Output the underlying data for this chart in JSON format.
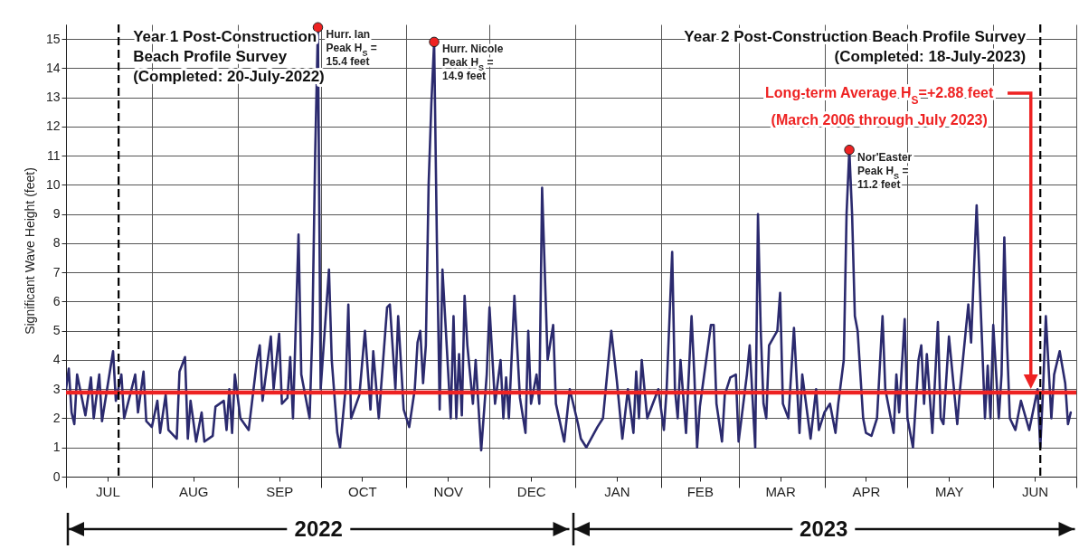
{
  "chart_data": {
    "type": "line",
    "ylabel": "Significant Wave Height (feet)",
    "xlim": [
      "2022-07-01",
      "2023-07-01"
    ],
    "ylim": [
      0,
      15.5
    ],
    "yticks": [
      0,
      1,
      2,
      3,
      4,
      5,
      6,
      7,
      8,
      9,
      10,
      11,
      12,
      13,
      14,
      15
    ],
    "xticks": [
      {
        "value": "2022-07-01",
        "label": null
      },
      {
        "value": "2022-07-16",
        "label": "JUL"
      },
      {
        "value": "2022-08-01",
        "label": null
      },
      {
        "value": "2022-08-16",
        "label": "AUG"
      },
      {
        "value": "2022-09-01",
        "label": null
      },
      {
        "value": "2022-09-16",
        "label": "SEP"
      },
      {
        "value": "2022-10-01",
        "label": null
      },
      {
        "value": "2022-10-16",
        "label": "OCT"
      },
      {
        "value": "2022-11-01",
        "label": null
      },
      {
        "value": "2022-11-16",
        "label": "NOV"
      },
      {
        "value": "2022-12-01",
        "label": null
      },
      {
        "value": "2022-12-16",
        "label": "DEC"
      },
      {
        "value": "2023-01-01",
        "label": null
      },
      {
        "value": "2023-01-16",
        "label": "JAN"
      },
      {
        "value": "2023-02-01",
        "label": null
      },
      {
        "value": "2023-02-15",
        "label": "FEB"
      },
      {
        "value": "2023-03-01",
        "label": null
      },
      {
        "value": "2023-03-16",
        "label": "MAR"
      },
      {
        "value": "2023-04-01",
        "label": null
      },
      {
        "value": "2023-04-16",
        "label": "APR"
      },
      {
        "value": "2023-05-01",
        "label": null
      },
      {
        "value": "2023-05-16",
        "label": "MAY"
      },
      {
        "value": "2023-06-01",
        "label": null
      },
      {
        "value": "2023-06-16",
        "label": "JUN"
      },
      {
        "value": "2023-07-01",
        "label": null
      }
    ],
    "grid": true,
    "series": [
      {
        "color": "#2b2a6e",
        "x": [
          "2022-07-01",
          "2022-07-02",
          "2022-07-03",
          "2022-07-04",
          "2022-07-05",
          "2022-07-08",
          "2022-07-10",
          "2022-07-11",
          "2022-07-13",
          "2022-07-14",
          "2022-07-18",
          "2022-07-19",
          "2022-07-21",
          "2022-07-22",
          "2022-07-26",
          "2022-07-27",
          "2022-07-29",
          "2022-07-30",
          "2022-08-01",
          "2022-08-03",
          "2022-08-04",
          "2022-08-06",
          "2022-08-07",
          "2022-08-10",
          "2022-08-11",
          "2022-08-13",
          "2022-08-14",
          "2022-08-15",
          "2022-08-17",
          "2022-08-19",
          "2022-08-20",
          "2022-08-23",
          "2022-08-24",
          "2022-08-27",
          "2022-08-28",
          "2022-08-29",
          "2022-08-30",
          "2022-08-31",
          "2022-09-02",
          "2022-09-05",
          "2022-09-08",
          "2022-09-09",
          "2022-09-10",
          "2022-09-13",
          "2022-09-14",
          "2022-09-16",
          "2022-09-17",
          "2022-09-19",
          "2022-09-20",
          "2022-09-21",
          "2022-09-23",
          "2022-09-24",
          "2022-09-27",
          "2022-09-28",
          "2022-09-29",
          "2022-09-30",
          "2022-10-01",
          "2022-10-04",
          "2022-10-05",
          "2022-10-07",
          "2022-10-08",
          "2022-10-10",
          "2022-10-11",
          "2022-10-12",
          "2022-10-15",
          "2022-10-17",
          "2022-10-19",
          "2022-10-20",
          "2022-10-22",
          "2022-10-25",
          "2022-10-26",
          "2022-10-28",
          "2022-10-29",
          "2022-10-31",
          "2022-11-02",
          "2022-11-04",
          "2022-11-05",
          "2022-11-06",
          "2022-11-07",
          "2022-11-08",
          "2022-11-09",
          "2022-11-10",
          "2022-11-11",
          "2022-11-12",
          "2022-11-13",
          "2022-11-14",
          "2022-11-17",
          "2022-11-18",
          "2022-11-19",
          "2022-11-20",
          "2022-11-21",
          "2022-11-22",
          "2022-11-23",
          "2022-11-25",
          "2022-11-26",
          "2022-11-28",
          "2022-11-30",
          "2022-12-01",
          "2022-12-03",
          "2022-12-05",
          "2022-12-06",
          "2022-12-07",
          "2022-12-08",
          "2022-12-10",
          "2022-12-12",
          "2022-12-14",
          "2022-12-15",
          "2022-12-16",
          "2022-12-18",
          "2022-12-19",
          "2022-12-20",
          "2022-12-22",
          "2022-12-24",
          "2022-12-25",
          "2022-12-28",
          "2022-12-30",
          "2023-01-02",
          "2023-01-03",
          "2023-01-05",
          "2023-01-09",
          "2023-01-11",
          "2023-01-14",
          "2023-01-16",
          "2023-01-18",
          "2023-01-20",
          "2023-01-22",
          "2023-01-23",
          "2023-01-24",
          "2023-01-25",
          "2023-01-27",
          "2023-01-31",
          "2023-02-02",
          "2023-02-03",
          "2023-02-05",
          "2023-02-06",
          "2023-02-07",
          "2023-02-08",
          "2023-02-10",
          "2023-02-12",
          "2023-02-13",
          "2023-02-14",
          "2023-02-15",
          "2023-02-19",
          "2023-02-20",
          "2023-02-21",
          "2023-02-23",
          "2023-02-24",
          "2023-02-26",
          "2023-02-28",
          "2023-03-01",
          "2023-03-04",
          "2023-03-05",
          "2023-03-07",
          "2023-03-08",
          "2023-03-09",
          "2023-03-10",
          "2023-03-11",
          "2023-03-12",
          "2023-03-15",
          "2023-03-16",
          "2023-03-17",
          "2023-03-19",
          "2023-03-21",
          "2023-03-23",
          "2023-03-24",
          "2023-03-27",
          "2023-03-29",
          "2023-03-30",
          "2023-04-01",
          "2023-04-03",
          "2023-04-05",
          "2023-04-06",
          "2023-04-08",
          "2023-04-09",
          "2023-04-10",
          "2023-04-11",
          "2023-04-12",
          "2023-04-13",
          "2023-04-15",
          "2023-04-16",
          "2023-04-18",
          "2023-04-20",
          "2023-04-22",
          "2023-04-23",
          "2023-04-26",
          "2023-04-27",
          "2023-04-28",
          "2023-04-30",
          "2023-05-01",
          "2023-05-03",
          "2023-05-05",
          "2023-05-06",
          "2023-05-07",
          "2023-05-08",
          "2023-05-10",
          "2023-05-12",
          "2023-05-13",
          "2023-05-14",
          "2023-05-16",
          "2023-05-19",
          "2023-05-20",
          "2023-05-23",
          "2023-05-24",
          "2023-05-25",
          "2023-05-26",
          "2023-05-28",
          "2023-05-29",
          "2023-05-30",
          "2023-05-31",
          "2023-06-01",
          "2023-06-03",
          "2023-06-04",
          "2023-06-05",
          "2023-06-06",
          "2023-06-07",
          "2023-06-09",
          "2023-06-11",
          "2023-06-14",
          "2023-06-17",
          "2023-06-18",
          "2023-06-19",
          "2023-06-20",
          "2023-06-22",
          "2023-06-23",
          "2023-06-25",
          "2023-06-27",
          "2023-06-28",
          "2023-06-29"
        ],
        "values": [
          3.0,
          3.7,
          2.2,
          1.8,
          3.5,
          2.1,
          3.4,
          2.0,
          3.5,
          1.9,
          4.3,
          2.6,
          3.5,
          2.0,
          3.5,
          2.2,
          3.6,
          1.9,
          1.7,
          2.6,
          1.5,
          2.8,
          1.6,
          1.3,
          3.6,
          4.1,
          1.3,
          2.6,
          1.2,
          2.2,
          1.2,
          1.4,
          2.4,
          2.6,
          1.6,
          3.0,
          1.5,
          3.5,
          2.0,
          1.6,
          4.0,
          4.5,
          2.6,
          4.8,
          3.0,
          4.9,
          2.5,
          2.7,
          4.1,
          2.0,
          8.3,
          3.5,
          2.0,
          5.0,
          11.0,
          15.4,
          3.0,
          7.1,
          4.0,
          1.5,
          1.0,
          3.0,
          5.9,
          2.0,
          2.8,
          5.0,
          2.3,
          4.3,
          2.0,
          5.8,
          5.9,
          3.0,
          5.5,
          2.3,
          1.7,
          3.0,
          4.6,
          5.0,
          3.2,
          4.5,
          10.0,
          12.8,
          14.9,
          8.0,
          2.3,
          7.1,
          2.0,
          5.5,
          2.0,
          4.2,
          2.1,
          6.2,
          4.5,
          2.5,
          4.0,
          0.9,
          3.5,
          5.8,
          2.5,
          4.0,
          2.0,
          3.4,
          2.0,
          6.2,
          2.7,
          1.5,
          5.0,
          2.5,
          3.5,
          2.5,
          9.9,
          4.0,
          5.2,
          2.5,
          1.2,
          3.0,
          1.8,
          1.3,
          1.0,
          1.7,
          2.0,
          5.0,
          3.3,
          1.3,
          3.0,
          1.5,
          3.6,
          2.0,
          4.0,
          2.0,
          3.0,
          1.6,
          3.0,
          7.7,
          3.0,
          2.0,
          4.0,
          1.5,
          5.5,
          3.5,
          1.0,
          2.4,
          5.2,
          5.2,
          2.5,
          1.2,
          2.8,
          3.4,
          3.5,
          1.2,
          3.5,
          4.5,
          1.0,
          9.0,
          5.0,
          2.5,
          2.0,
          4.5,
          5.0,
          6.3,
          2.5,
          2.0,
          5.1,
          1.5,
          3.5,
          1.3,
          3.0,
          1.6,
          2.2,
          2.5,
          1.5,
          2.5,
          4.0,
          9.0,
          11.2,
          9.0,
          5.5,
          5.0,
          2.0,
          1.5,
          1.4,
          2.0,
          5.5,
          3.0,
          1.5,
          3.5,
          2.2,
          5.4,
          2.0,
          1.0,
          4.0,
          4.5,
          2.5,
          4.2,
          1.5,
          5.3,
          2.0,
          1.8,
          4.8,
          1.8,
          3.0,
          5.9,
          4.6,
          7.0,
          9.3,
          4.5,
          2.0,
          3.8,
          2.0,
          5.2,
          2.0,
          3.5,
          8.2,
          4.5,
          2.0,
          1.6,
          2.6,
          1.6,
          3.0,
          1.0,
          3.0,
          5.5,
          2.0,
          3.5,
          4.3,
          3.2,
          1.8,
          2.2
        ]
      },
      {
        "type": "scatter",
        "marker": "circle",
        "color": "#ee2222",
        "x": [
          "2022-09-30",
          "2022-11-11",
          "2023-04-10"
        ],
        "values": [
          15.4,
          14.9,
          11.2
        ]
      }
    ],
    "ref_lines": [
      {
        "axis": "y",
        "value": 2.88,
        "color": "#ee2222",
        "line_style": "solid",
        "label": "Long-term Average H$_{S}$=+2.88 feet\n(March 2006 through July 2023)"
      },
      {
        "axis": "x",
        "value": "2022-07-20",
        "color": "#000000",
        "line_style": "dashed",
        "label": "Year 1 Post-Construction\nBeach Profile Survey\n(Completed: 20-July-2022)"
      },
      {
        "axis": "x",
        "value": "2023-06-18",
        "color": "#000000",
        "line_style": "dashed",
        "label": "Year 2 Post-Construction Beach Profile Survey\n(Completed: 18-July-2023)"
      }
    ],
    "annotations": [
      {
        "text": "Hurr. Ian\nPeak H$_{S}$ =\n15.4 feet",
        "x": "2022-09-30",
        "y": 15.4
      },
      {
        "text": "Hurr. Nicole\nPeak H$_{S}$ =\n14.9 feet",
        "x": "2022-11-11",
        "y": 14.9
      },
      {
        "text": "Nor'Easter\nPeak H$_{S}$ =\n11.2 feet",
        "x": "2023-04-10",
        "y": 11.2
      },
      "2022",
      "2023"
    ]
  }
}
